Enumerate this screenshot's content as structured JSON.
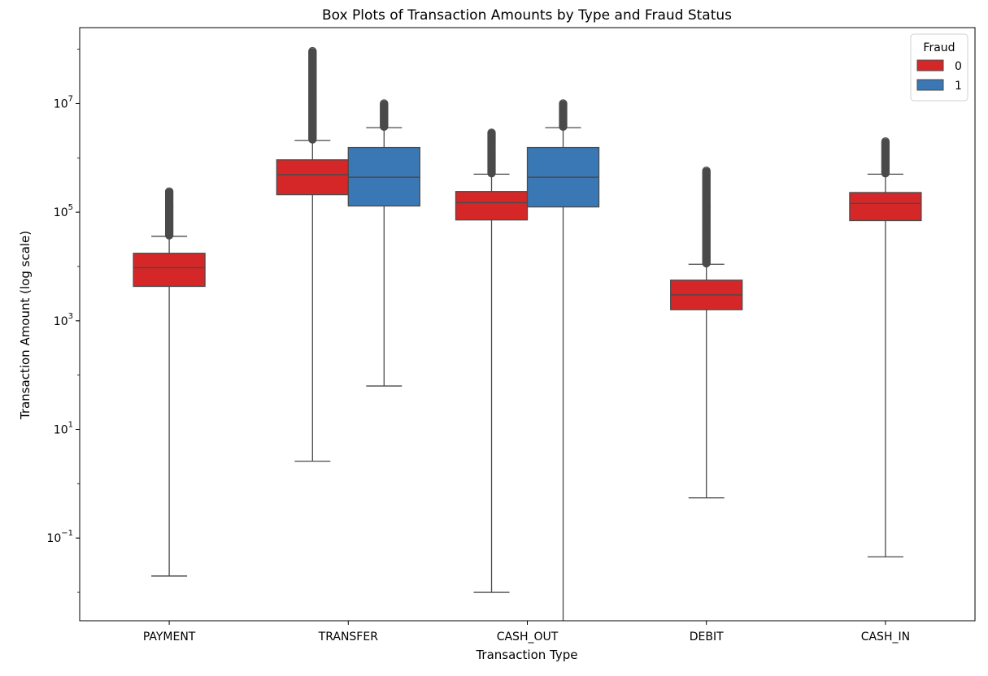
{
  "chart_data": {
    "type": "box",
    "title": "Box Plots of Transaction Amounts by Type and Fraud Status",
    "xlabel": "Transaction Type",
    "ylabel": "Transaction Amount (log scale)",
    "y_scale": "log",
    "ylim": [
      0.003,
      250000000
    ],
    "yticks": [
      {
        "value": 0.1,
        "base": "10",
        "exp": "−1"
      },
      {
        "value": 10,
        "base": "10",
        "exp": "1"
      },
      {
        "value": 1000,
        "base": "10",
        "exp": "3"
      },
      {
        "value": 100000,
        "base": "10",
        "exp": "5"
      },
      {
        "value": 10000000,
        "base": "10",
        "exp": "7"
      }
    ],
    "categories": [
      "PAYMENT",
      "TRANSFER",
      "CASH_OUT",
      "DEBIT",
      "CASH_IN"
    ],
    "legend": {
      "title": "Fraud",
      "position": "top-right",
      "entries": [
        {
          "label": "0",
          "color": "#d62728"
        },
        {
          "label": "1",
          "color": "#3a78b5"
        }
      ]
    },
    "grid": false,
    "series": [
      {
        "name": "0",
        "color": "#d62728",
        "boxes": [
          {
            "category": "PAYMENT",
            "whisker_low": 0.02,
            "q1": 4300,
            "median": 9500,
            "q3": 17500,
            "whisker_high": 36000,
            "outlier_max": 240000
          },
          {
            "category": "TRANSFER",
            "whisker_low": 2.6,
            "q1": 210000,
            "median": 490000,
            "q3": 920000,
            "whisker_high": 2100000,
            "outlier_max": 92000000
          },
          {
            "category": "CASH_OUT",
            "whisker_low": 0.01,
            "q1": 72000,
            "median": 150000,
            "q3": 240000,
            "whisker_high": 500000,
            "outlier_max": 2900000
          },
          {
            "category": "DEBIT",
            "whisker_low": 0.55,
            "q1": 1600,
            "median": 3000,
            "q3": 5600,
            "whisker_high": 11000,
            "outlier_max": 580000
          },
          {
            "category": "CASH_IN",
            "whisker_low": 0.045,
            "q1": 70000,
            "median": 145000,
            "q3": 230000,
            "whisker_high": 500000,
            "outlier_max": 2000000
          }
        ]
      },
      {
        "name": "1",
        "color": "#3a78b5",
        "boxes": [
          {
            "category": "TRANSFER",
            "whisker_low": 63,
            "q1": 130000,
            "median": 440000,
            "q3": 1550000,
            "whisker_high": 3600000,
            "outlier_max": 10000000
          },
          {
            "category": "CASH_OUT",
            "whisker_low": 0.001,
            "q1": 125000,
            "median": 440000,
            "q3": 1550000,
            "whisker_high": 3600000,
            "outlier_max": 10000000
          }
        ]
      }
    ]
  }
}
